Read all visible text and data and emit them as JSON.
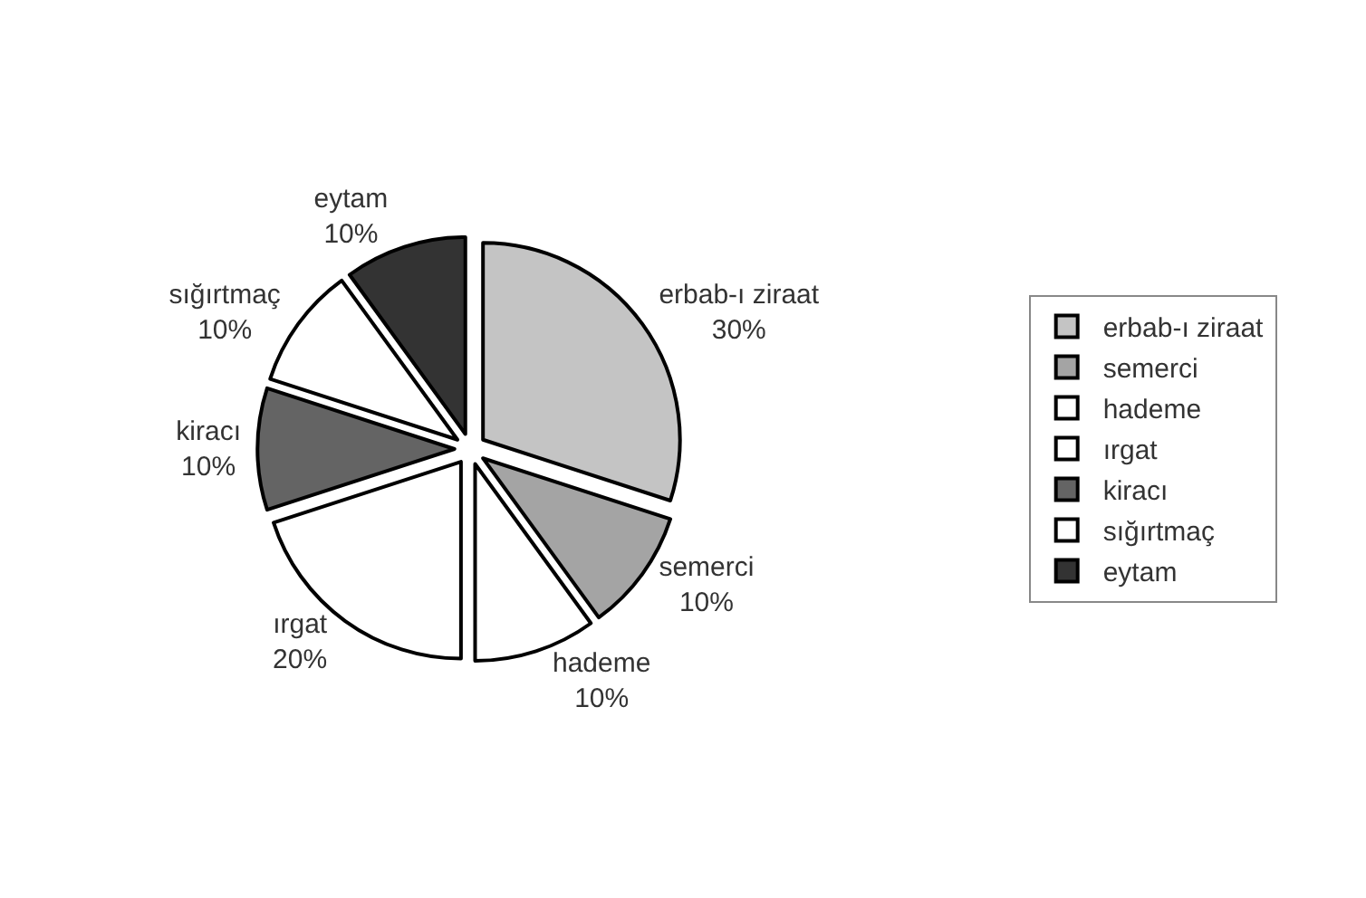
{
  "chart_data": {
    "type": "pie",
    "categories": [
      "erbab-ı ziraat",
      "semerci",
      "hademe",
      "ırgat",
      "kiracı",
      "sığırtmaç",
      "eytam"
    ],
    "values": [
      30,
      10,
      10,
      20,
      10,
      10,
      10
    ],
    "value_labels": [
      "30%",
      "10%",
      "10%",
      "20%",
      "10%",
      "10%",
      "10%"
    ],
    "colors": [
      "#c4c4c4",
      "#a4a4a4",
      "#ffffff",
      "#ffffff",
      "#646464",
      "#ffffff",
      "#333333"
    ],
    "legend": "right"
  }
}
